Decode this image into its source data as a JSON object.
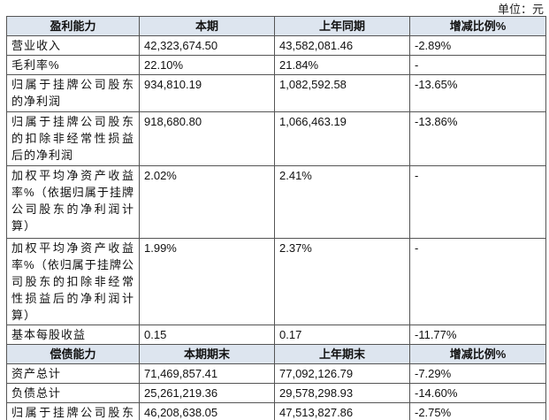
{
  "unit": "单位：元",
  "table": {
    "sections": [
      {
        "header": [
          "盈利能力",
          "本期",
          "上年同期",
          "增减比例%"
        ],
        "rows": [
          [
            "营业收入",
            "42,323,674.50",
            "43,582,081.46",
            "-2.89%"
          ],
          [
            "毛利率%",
            "22.10%",
            "21.84%",
            "-"
          ],
          [
            "归属于挂牌公司股东的净利润",
            "934,810.19",
            "1,082,592.58",
            "-13.65%"
          ],
          [
            "归属于挂牌公司股东的扣除非经常性损益后的净利润",
            "918,680.80",
            "1,066,463.19",
            "-13.86%"
          ],
          [
            "加权平均净资产收益率%（依据归属于挂牌公司股东的净利润计算）",
            "2.02%",
            "2.41%",
            "-"
          ],
          [
            "加权平均净资产收益率%（依归属于挂牌公司股东的扣除非经常性损益后的净利润计算）",
            "1.99%",
            "2.37%",
            "-"
          ],
          [
            "基本每股收益",
            "0.15",
            "0.17",
            "-11.77%"
          ]
        ]
      },
      {
        "header": [
          "偿债能力",
          "本期期末",
          "上年期末",
          "增减比例%"
        ],
        "rows": [
          [
            "资产总计",
            "71,469,857.41",
            "77,092,126.79",
            "-7.29%"
          ],
          [
            "负债总计",
            "25,261,219.36",
            "29,578,298.93",
            "-14.60%"
          ],
          [
            "归属于挂牌公司股东的净资产",
            "46,208,638.05",
            "47,513,827.86",
            "-2.75%"
          ]
        ]
      }
    ]
  }
}
